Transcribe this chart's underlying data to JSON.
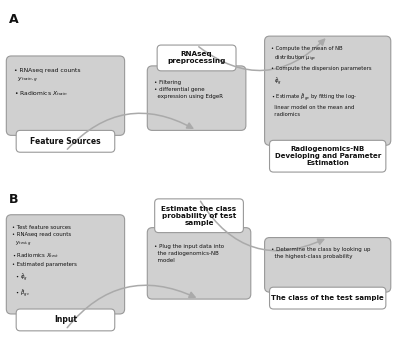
{
  "bg_color": "#ffffff",
  "box_gray": "#c8c8c8",
  "box_white": "#ffffff",
  "box_lightgray": "#d0d0d0",
  "text_dark": "#111111",
  "arrow_color": "#aaaaaa",
  "edge_color": "#999999",
  "section_A_label": "A",
  "section_B_label": "B",
  "boxA1_title": "Feature Sources",
  "boxA2_title": "RNAseq\npreprocessing",
  "boxA3_title": "Radiogenomics-NB\nDeveloping and Parameter\nEstimation",
  "boxB1_title": "Input",
  "boxB2_title": "Estimate the class\nprobability of test\nsample",
  "boxB3_title": "The class of the test sample"
}
